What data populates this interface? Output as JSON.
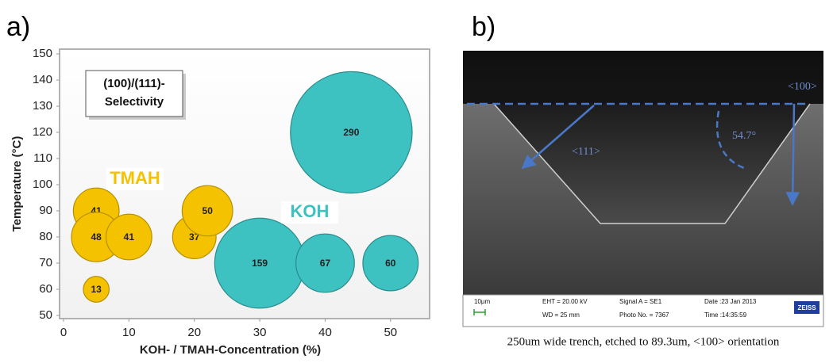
{
  "panel_labels": [
    "a)",
    "b)"
  ],
  "chart_data": {
    "type": "bubble",
    "x_label": "KOH- / TMAH-Concentration (%)",
    "y_label": "Temperature (°C)",
    "annotation": [
      "(100)/(111)-",
      "Selectivity"
    ],
    "xlim": [
      0,
      55
    ],
    "xticks": [
      0,
      10,
      20,
      30,
      40,
      50
    ],
    "ylim": [
      50,
      150
    ],
    "yticks": [
      50,
      60,
      70,
      80,
      90,
      100,
      110,
      120,
      130,
      140,
      150
    ],
    "grid": false,
    "series": [
      {
        "name": "TMAH",
        "color": "#f5c200",
        "x": [
          5,
          5,
          10,
          5,
          20,
          22
        ],
        "y": [
          90,
          80,
          80,
          60,
          80,
          90
        ],
        "sizes": [
          41,
          48,
          41,
          13,
          37,
          50
        ]
      },
      {
        "name": "KOH",
        "color": "#3ec1c1",
        "x": [
          44,
          30,
          40,
          50
        ],
        "y": [
          120,
          70,
          70,
          70
        ],
        "sizes": [
          290,
          159,
          67,
          60
        ]
      }
    ]
  },
  "sem_image": {
    "labels": {
      "dir_100": "<100>",
      "dir_111": "<111>",
      "angle": "54.7°"
    },
    "info_bar": {
      "scale": "10µm",
      "eht": "EHT = 20.00 kV",
      "wd": "WD =  25 mm",
      "signal": "Signal A = SE1",
      "photo": "Photo No. = 7367",
      "date": "Date :23 Jan 2013",
      "time": "Time :14:35:59",
      "brand": "ZEISS"
    },
    "caption": "250um wide trench, etched to 89.3um, <100> orientation"
  }
}
